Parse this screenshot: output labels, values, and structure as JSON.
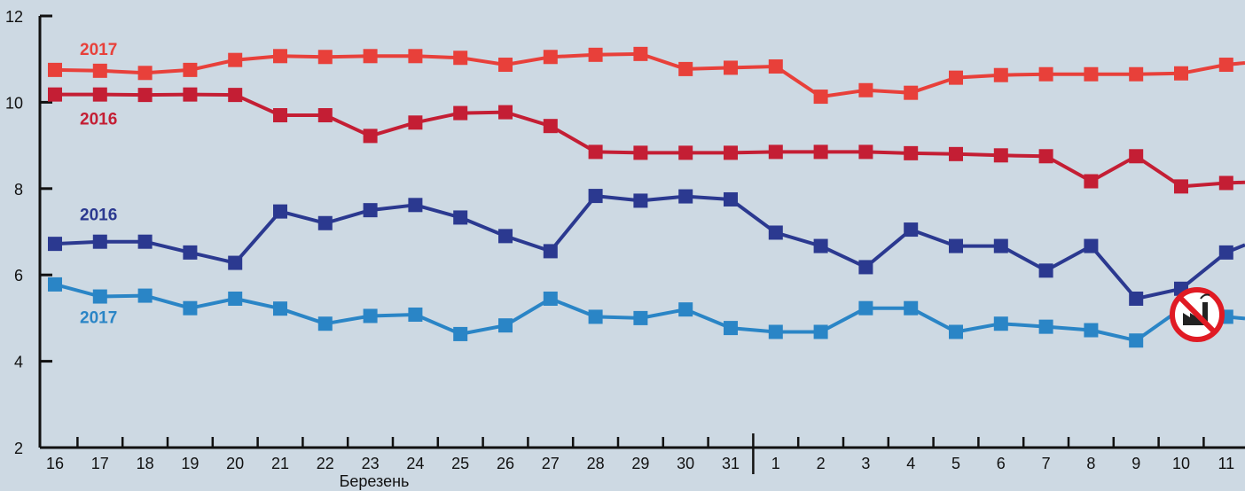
{
  "colors": {
    "background": "#cdd9e3",
    "axis": "#111111",
    "red_2017": "#e8403a",
    "red_2016": "#c41e34",
    "blue_2016": "#2b3990",
    "blue_2017": "#2a85c6",
    "no_industry_icon": "#e01b24"
  },
  "icons": {
    "no_industry": "no-factory-icon"
  },
  "chart_data": {
    "type": "line",
    "x_categories": [
      "16",
      "17",
      "18",
      "19",
      "20",
      "21",
      "22",
      "23",
      "24",
      "25",
      "26",
      "27",
      "28",
      "29",
      "30",
      "31",
      "1",
      "2",
      "3",
      "4",
      "5",
      "6",
      "7",
      "8",
      "9",
      "10",
      "11"
    ],
    "x_group_label": "Березень",
    "y_ticks": [
      2,
      4,
      6,
      8,
      10,
      12
    ],
    "ylim": [
      2,
      12
    ],
    "grid": false,
    "series": [
      {
        "name": "2017",
        "color": "#e8403a",
        "values": [
          10.75,
          10.73,
          10.68,
          10.75,
          10.98,
          11.07,
          11.05,
          11.07,
          11.07,
          11.03,
          10.87,
          11.05,
          11.1,
          11.12,
          10.77,
          10.8,
          10.83,
          10.13,
          10.28,
          10.22,
          10.57,
          10.63,
          10.65,
          10.65,
          10.65,
          10.67,
          10.87
        ]
      },
      {
        "name": "2016",
        "color": "#c41e34",
        "values": [
          10.18,
          10.18,
          10.17,
          10.18,
          10.17,
          9.7,
          9.7,
          9.22,
          9.53,
          9.75,
          9.77,
          9.45,
          8.85,
          8.83,
          8.83,
          8.83,
          8.85,
          8.85,
          8.85,
          8.82,
          8.8,
          8.77,
          8.75,
          8.17,
          8.75,
          8.05,
          8.13
        ]
      },
      {
        "name": "2016",
        "color": "#2b3990",
        "values": [
          6.72,
          6.77,
          6.77,
          6.52,
          6.28,
          7.47,
          7.2,
          7.5,
          7.62,
          7.33,
          6.9,
          6.55,
          7.83,
          7.72,
          7.82,
          7.75,
          6.98,
          6.67,
          6.18,
          7.05,
          6.67,
          6.67,
          6.1,
          6.67,
          5.45,
          5.68,
          6.52
        ]
      },
      {
        "name": "2017",
        "color": "#2a85c6",
        "values": [
          5.78,
          5.5,
          5.52,
          5.23,
          5.45,
          5.22,
          4.87,
          5.05,
          5.08,
          4.63,
          4.83,
          5.45,
          5.03,
          5.0,
          5.2,
          4.77,
          4.68,
          4.68,
          5.23,
          5.23,
          4.68,
          4.87,
          4.8,
          4.72,
          4.48,
          5.22,
          5.03
        ]
      }
    ]
  }
}
